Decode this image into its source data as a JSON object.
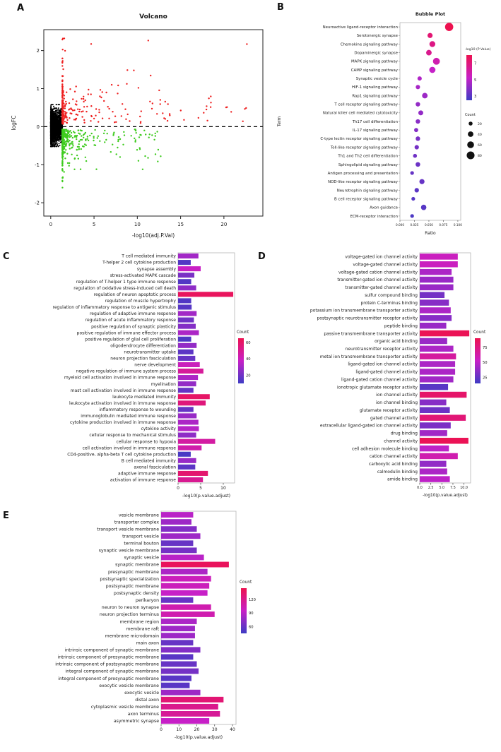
{
  "labels": {
    "a": "A",
    "b": "B",
    "c": "C",
    "d": "D",
    "e": "E"
  },
  "colors": {
    "up": "#ee2020",
    "down": "#3ecb1e",
    "neutral": "#000000",
    "gradient_low": "#3e3cc4",
    "gradient_mid": "#c720c7",
    "gradient_high": "#ed1250"
  },
  "chart_data": [
    {
      "id": "volcano",
      "type": "scatter",
      "title": "Volcano",
      "xlabel": "-log10(adj.P.Val)",
      "ylabel": "logFC",
      "xlim": [
        -0.8,
        24.5
      ],
      "ylim": [
        -2.35,
        2.55
      ],
      "xticks": [
        0,
        5,
        10,
        15,
        20
      ],
      "yticks": [
        -2,
        -1,
        0,
        1,
        2
      ],
      "hline_y": 0,
      "series": [
        {
          "name": "non-significant",
          "color": "#000000",
          "n": 2400,
          "seed": 11,
          "x_range": [
            0.01,
            1.35
          ],
          "x_pow": 2.5,
          "y_sigma": 0.21,
          "y_clip": [
            -0.52,
            0.58
          ],
          "r": 1.0
        },
        {
          "name": "up-regulated",
          "color": "#ee2020",
          "n": 380,
          "seed": 23,
          "x_range": [
            1.35,
            23.8
          ],
          "x_pow": 10,
          "sign": 1,
          "y_base": 0.07,
          "y_sigma": 0.5,
          "y_clip": [
            0.07,
            2.45
          ],
          "y_hi_frac": 0.025,
          "y_hi_range": [
            1.5,
            2.45
          ],
          "r": 1.2
        },
        {
          "name": "down-regulated",
          "color": "#3ecb1e",
          "n": 500,
          "seed": 37,
          "x_range": [
            1.35,
            12.8
          ],
          "x_pow": 8,
          "sign": -1,
          "y_base": 0.07,
          "y_sigma": 0.38,
          "y_clip": [
            -1.72,
            -0.07
          ],
          "y_hi_frac": 0.02,
          "y_hi_range": [
            1.0,
            1.65
          ],
          "r": 1.2
        }
      ]
    },
    {
      "id": "bubble",
      "type": "bubble",
      "title": "Bubble Plot",
      "xlabel": "Ratio",
      "ylabel": "Term",
      "xlim": [
        0,
        0.105
      ],
      "xticks": [
        0,
        0.025,
        0.05,
        0.075,
        0.1
      ],
      "xtick_labels": [
        "0.000",
        "0.025",
        "0.050",
        "0.075",
        "0.100"
      ],
      "color_legend": {
        "title": "-log10 (P Value)",
        "ticks": [
          7,
          5,
          3
        ],
        "min": 2.5,
        "max": 8
      },
      "size_legend": {
        "title": "Count",
        "ticks": [
          20,
          40,
          60,
          80
        ]
      },
      "terms": [
        {
          "term": "Neuroactive ligand-receptor interaction",
          "ratio": 0.085,
          "count": 88,
          "logp": 8.2
        },
        {
          "term": "Serotonergic synapse",
          "ratio": 0.052,
          "count": 34,
          "logp": 7.2
        },
        {
          "term": "Chemokine signaling pathway",
          "ratio": 0.056,
          "count": 45,
          "logp": 6.8
        },
        {
          "term": "Dopaminergic synapse",
          "ratio": 0.05,
          "count": 40,
          "logp": 6.6
        },
        {
          "term": "MAPK signaling pathway",
          "ratio": 0.063,
          "count": 62,
          "logp": 5.8
        },
        {
          "term": "CAMP signaling pathway",
          "ratio": 0.056,
          "count": 50,
          "logp": 5.2
        },
        {
          "term": "Synaptic vesicle cycle",
          "ratio": 0.034,
          "count": 24,
          "logp": 4.8
        },
        {
          "term": "HIF-1 signaling pathway",
          "ratio": 0.031,
          "count": 24,
          "logp": 4.6
        },
        {
          "term": "Rap1 signaling pathway",
          "ratio": 0.043,
          "count": 40,
          "logp": 4.4
        },
        {
          "term": "T cell receptor signaling pathway",
          "ratio": 0.031,
          "count": 26,
          "logp": 4.2
        },
        {
          "term": "Natural killer cell mediated cytotoxicity",
          "ratio": 0.036,
          "count": 32,
          "logp": 4.2
        },
        {
          "term": "Th17 cell differentiation",
          "ratio": 0.031,
          "count": 26,
          "logp": 4.0
        },
        {
          "term": "IL-17 signaling pathway",
          "ratio": 0.028,
          "count": 22,
          "logp": 3.9
        },
        {
          "term": "C-type lectin receptor signaling pathway",
          "ratio": 0.031,
          "count": 26,
          "logp": 3.7
        },
        {
          "term": "Toll-like receptor signaling pathway",
          "ratio": 0.029,
          "count": 25,
          "logp": 3.6
        },
        {
          "term": "Th1 and Th2 cell differentiation",
          "ratio": 0.026,
          "count": 20,
          "logp": 3.5
        },
        {
          "term": "Sphingolipid signaling pathway",
          "ratio": 0.031,
          "count": 28,
          "logp": 3.4
        },
        {
          "term": "Antigen processing and presentation",
          "ratio": 0.021,
          "count": 18,
          "logp": 3.3
        },
        {
          "term": "NOD-like receptor signaling pathway",
          "ratio": 0.038,
          "count": 34,
          "logp": 3.3
        },
        {
          "term": "Neurotrophin signaling pathway",
          "ratio": 0.029,
          "count": 26,
          "logp": 3.1
        },
        {
          "term": "B cell receptor signaling pathway",
          "ratio": 0.023,
          "count": 18,
          "logp": 3.0
        },
        {
          "term": "Axon guidance",
          "ratio": 0.041,
          "count": 38,
          "logp": 3.0
        },
        {
          "term": "ECM-receptor interaction",
          "ratio": 0.021,
          "count": 18,
          "logp": 2.8
        }
      ]
    },
    {
      "id": "go_bp",
      "type": "bar",
      "xlabel": "-log10(p.value.adjust)",
      "xmax": 12.5,
      "xticks": [
        0,
        5,
        10
      ],
      "xtick_labels": [
        "0",
        "5",
        "10"
      ],
      "legend": {
        "title": "Count",
        "ticks": [
          60,
          40,
          20
        ],
        "min": 10,
        "max": 65
      },
      "bars": [
        {
          "term": "T cell mediated immunity",
          "value": 4.5,
          "count": 30
        },
        {
          "term": "T-helper 2 cell cytokine production",
          "value": 2.8,
          "count": 14
        },
        {
          "term": "synapse assembly",
          "value": 5.0,
          "count": 38
        },
        {
          "term": "stress-activated MAPK cascade",
          "value": 3.6,
          "count": 22
        },
        {
          "term": "regulation of T-helper 1 type immune response",
          "value": 2.9,
          "count": 14
        },
        {
          "term": "regulation of oxidative stress-induced cell death",
          "value": 4.0,
          "count": 26
        },
        {
          "term": "regulation of neuron apoptotic process",
          "value": 12.2,
          "count": 62
        },
        {
          "term": "regulation of muscle hypertrophy",
          "value": 2.9,
          "count": 14
        },
        {
          "term": "regulation of inflammatory response to antigenic stimulus",
          "value": 3.0,
          "count": 15
        },
        {
          "term": "regulation of adaptive immune response",
          "value": 4.1,
          "count": 30
        },
        {
          "term": "regulation of acute inflammatory response",
          "value": 3.5,
          "count": 20
        },
        {
          "term": "positive regulation of synaptic plasticity",
          "value": 3.9,
          "count": 24
        },
        {
          "term": "positive regulation of immune effector process",
          "value": 4.6,
          "count": 32
        },
        {
          "term": "positive regulation of glial cell proliferation",
          "value": 2.9,
          "count": 13
        },
        {
          "term": "oligodendrocyte differentiation",
          "value": 4.1,
          "count": 27
        },
        {
          "term": "neurotransmitter uptake",
          "value": 3.4,
          "count": 16
        },
        {
          "term": "neuron projection fasciculation",
          "value": 3.8,
          "count": 18
        },
        {
          "term": "nerve development",
          "value": 4.8,
          "count": 40
        },
        {
          "term": "negative regulation of immune system process",
          "value": 5.6,
          "count": 48
        },
        {
          "term": "myeloid cell activation involved in immune response",
          "value": 4.4,
          "count": 32
        },
        {
          "term": "myelination",
          "value": 4.0,
          "count": 27
        },
        {
          "term": "mast cell activation involved in immune response",
          "value": 3.4,
          "count": 18
        },
        {
          "term": "leukocyte mediated immunity",
          "value": 7.0,
          "count": 60
        },
        {
          "term": "leukocyte activation involved in immune response",
          "value": 6.1,
          "count": 55
        },
        {
          "term": "inflammatory response to wounding",
          "value": 3.4,
          "count": 18
        },
        {
          "term": "immunoglobulin mediated immune response",
          "value": 4.1,
          "count": 28
        },
        {
          "term": "cytokine production involved in immune response",
          "value": 4.5,
          "count": 32
        },
        {
          "term": "cytokine activity",
          "value": 4.6,
          "count": 34
        },
        {
          "term": "cellular response to mechanical stimulus",
          "value": 4.0,
          "count": 26
        },
        {
          "term": "cellular response to hypoxia",
          "value": 8.2,
          "count": 46
        },
        {
          "term": "cell activation involved in immune response",
          "value": 5.2,
          "count": 44
        },
        {
          "term": "CD4-positive, alpha-beta T cell cytokine production",
          "value": 2.8,
          "count": 12
        },
        {
          "term": "B cell mediated immunity",
          "value": 4.0,
          "count": 28
        },
        {
          "term": "axonal fasciculation",
          "value": 3.8,
          "count": 16
        },
        {
          "term": "adaptive immune response",
          "value": 6.6,
          "count": 58
        },
        {
          "term": "activation of immune response",
          "value": 5.5,
          "count": 50
        }
      ]
    },
    {
      "id": "go_mf",
      "type": "bar",
      "xlabel": "-log10(p.value.adjust)",
      "xmax": 11.5,
      "xticks": [
        0,
        2.5,
        5,
        7.5,
        10
      ],
      "xtick_labels": [
        "0.0",
        "2.5",
        "5.0",
        "7.5",
        "10.0"
      ],
      "legend": {
        "title": "Count",
        "ticks": [
          75,
          50,
          25
        ],
        "min": 15,
        "max": 90
      },
      "bars": [
        {
          "term": "voltage-gated ion channel activity",
          "value": 8.6,
          "count": 55
        },
        {
          "term": "voltage-gated channel activity",
          "value": 8.6,
          "count": 55
        },
        {
          "term": "voltage-gated cation channel activity",
          "value": 7.2,
          "count": 45
        },
        {
          "term": "transmitter-gated ion channel activity",
          "value": 7.6,
          "count": 40
        },
        {
          "term": "transmitter-gated channel activity",
          "value": 7.6,
          "count": 40
        },
        {
          "term": "sulfur compound binding",
          "value": 5.6,
          "count": 30
        },
        {
          "term": "protein C-terminus binding",
          "value": 6.6,
          "count": 35
        },
        {
          "term": "potassium ion transmembrane transporter activity",
          "value": 7.0,
          "count": 45
        },
        {
          "term": "postsynaptic neurotransmitter receptor activity",
          "value": 7.2,
          "count": 35
        },
        {
          "term": "peptide binding",
          "value": 6.0,
          "count": 40
        },
        {
          "term": "passive transmembrane transporter activity",
          "value": 11.2,
          "count": 88
        },
        {
          "term": "organic acid binding",
          "value": 6.2,
          "count": 40
        },
        {
          "term": "neurotransmitter receptor activity",
          "value": 7.6,
          "count": 45
        },
        {
          "term": "metal ion transmembrane transporter activity",
          "value": 8.2,
          "count": 65
        },
        {
          "term": "ligand-gated ion channel activity",
          "value": 8.0,
          "count": 45
        },
        {
          "term": "ligand-gated channel activity",
          "value": 8.0,
          "count": 45
        },
        {
          "term": "ligand-gated cation channel activity",
          "value": 7.6,
          "count": 42
        },
        {
          "term": "ionotropic glutamate receptor activity",
          "value": 6.4,
          "count": 22
        },
        {
          "term": "ion channel activity",
          "value": 10.6,
          "count": 82
        },
        {
          "term": "ion channel binding",
          "value": 6.0,
          "count": 35
        },
        {
          "term": "glutamate receptor activity",
          "value": 6.8,
          "count": 28
        },
        {
          "term": "gated channel activity",
          "value": 10.4,
          "count": 78
        },
        {
          "term": "extracellular ligand-gated ion channel activity",
          "value": 7.0,
          "count": 32
        },
        {
          "term": "drug binding",
          "value": 6.2,
          "count": 42
        },
        {
          "term": "channel activity",
          "value": 11.0,
          "count": 88
        },
        {
          "term": "cell adhesion molecule binding",
          "value": 6.6,
          "count": 50
        },
        {
          "term": "cation channel activity",
          "value": 8.6,
          "count": 60
        },
        {
          "term": "carboxylic acid binding",
          "value": 6.0,
          "count": 38
        },
        {
          "term": "calmodulin binding",
          "value": 6.2,
          "count": 45
        },
        {
          "term": "amide binding",
          "value": 6.8,
          "count": 50
        }
      ]
    },
    {
      "id": "go_cc",
      "type": "bar",
      "xlabel": "-log10(p.value.adjust)",
      "xmax": 42,
      "xticks": [
        0,
        10,
        20,
        30,
        40
      ],
      "xtick_labels": [
        "0",
        "10",
        "20",
        "30",
        "40"
      ],
      "legend": {
        "title": "Count",
        "ticks": [
          120,
          90,
          60
        ],
        "min": 45,
        "max": 145
      },
      "bars": [
        {
          "term": "vesicle membrane",
          "value": 18,
          "count": 90
        },
        {
          "term": "transporter complex",
          "value": 17,
          "count": 80
        },
        {
          "term": "transport vesicle membrane",
          "value": 20,
          "count": 70
        },
        {
          "term": "transport vesicle",
          "value": 22,
          "count": 80
        },
        {
          "term": "terminal bouton",
          "value": 18,
          "count": 60
        },
        {
          "term": "synaptic vesicle membrane",
          "value": 20,
          "count": 65
        },
        {
          "term": "synaptic vesicle",
          "value": 24,
          "count": 90
        },
        {
          "term": "synaptic membrane",
          "value": 38,
          "count": 140
        },
        {
          "term": "presynaptic membrane",
          "value": 26,
          "count": 85
        },
        {
          "term": "postsynaptic specialization",
          "value": 28,
          "count": 100
        },
        {
          "term": "postsynaptic membrane",
          "value": 27,
          "count": 100
        },
        {
          "term": "postsynaptic density",
          "value": 26,
          "count": 95
        },
        {
          "term": "perikaryon",
          "value": 18,
          "count": 60
        },
        {
          "term": "neuron to neuron synapse",
          "value": 28,
          "count": 105
        },
        {
          "term": "neuron projection terminus",
          "value": 30,
          "count": 105
        },
        {
          "term": "membrane region",
          "value": 20,
          "count": 85
        },
        {
          "term": "membrane raft",
          "value": 19,
          "count": 80
        },
        {
          "term": "membrane microdomain",
          "value": 19,
          "count": 80
        },
        {
          "term": "main axon",
          "value": 18,
          "count": 60
        },
        {
          "term": "intrinsic component of synaptic membrane",
          "value": 22,
          "count": 70
        },
        {
          "term": "intrinsic component of presynaptic membrane",
          "value": 18,
          "count": 55
        },
        {
          "term": "intrinsic component of postsynaptic membrane",
          "value": 20,
          "count": 60
        },
        {
          "term": "integral component of synaptic membrane",
          "value": 21,
          "count": 65
        },
        {
          "term": "integral component of presynaptic membrane",
          "value": 17,
          "count": 55
        },
        {
          "term": "exocytic vesicle membrane",
          "value": 16,
          "count": 55
        },
        {
          "term": "exocytic vesicle",
          "value": 22,
          "count": 80
        },
        {
          "term": "distal axon",
          "value": 35,
          "count": 130
        },
        {
          "term": "cytoplasmic vesicle membrane",
          "value": 32,
          "count": 120
        },
        {
          "term": "axon terminus",
          "value": 33,
          "count": 115
        },
        {
          "term": "asymmetric synapse",
          "value": 27,
          "count": 95
        }
      ]
    }
  ]
}
